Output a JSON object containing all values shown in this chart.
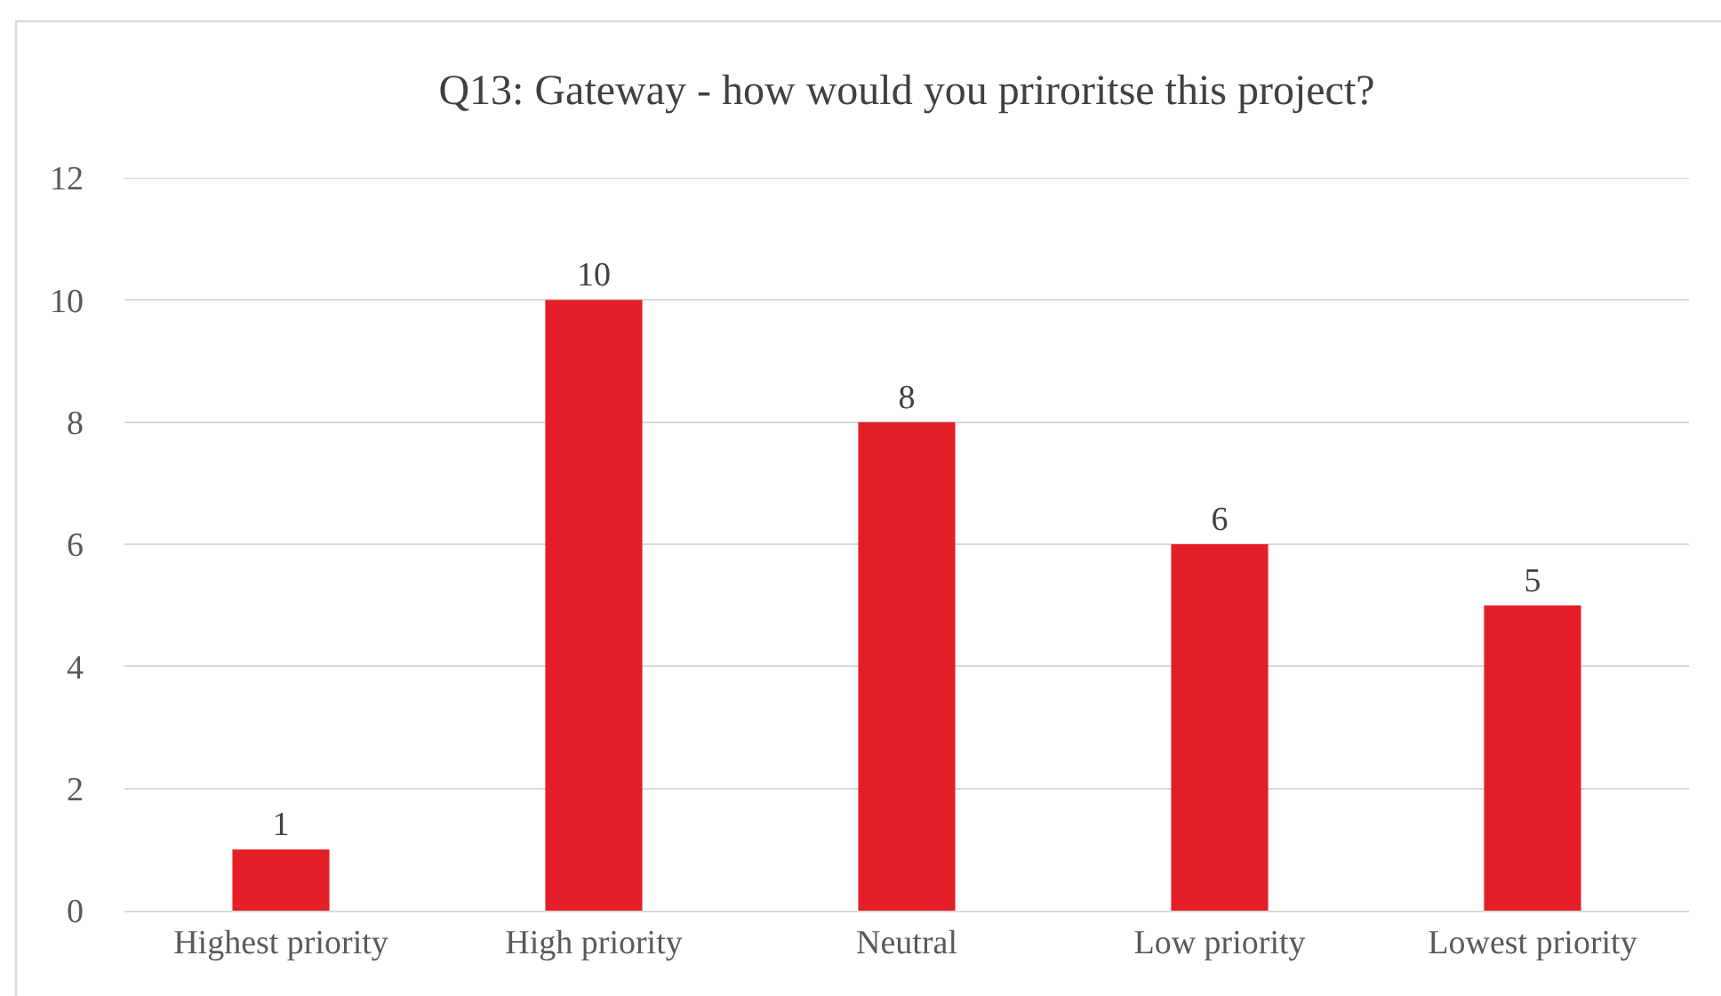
{
  "chart_data": {
    "type": "bar",
    "title": "Q13: Gateway - how would you priroritse this project?",
    "categories": [
      "Highest priority",
      "High priority",
      "Neutral",
      "Low priority",
      "Lowest priority"
    ],
    "values": [
      1,
      10,
      8,
      6,
      5
    ],
    "color": "#e41e26",
    "ylim": [
      0,
      12
    ],
    "yticks": [
      0,
      2,
      4,
      6,
      8,
      10,
      12
    ],
    "grid": "y",
    "data_labels": true,
    "legend": false
  }
}
